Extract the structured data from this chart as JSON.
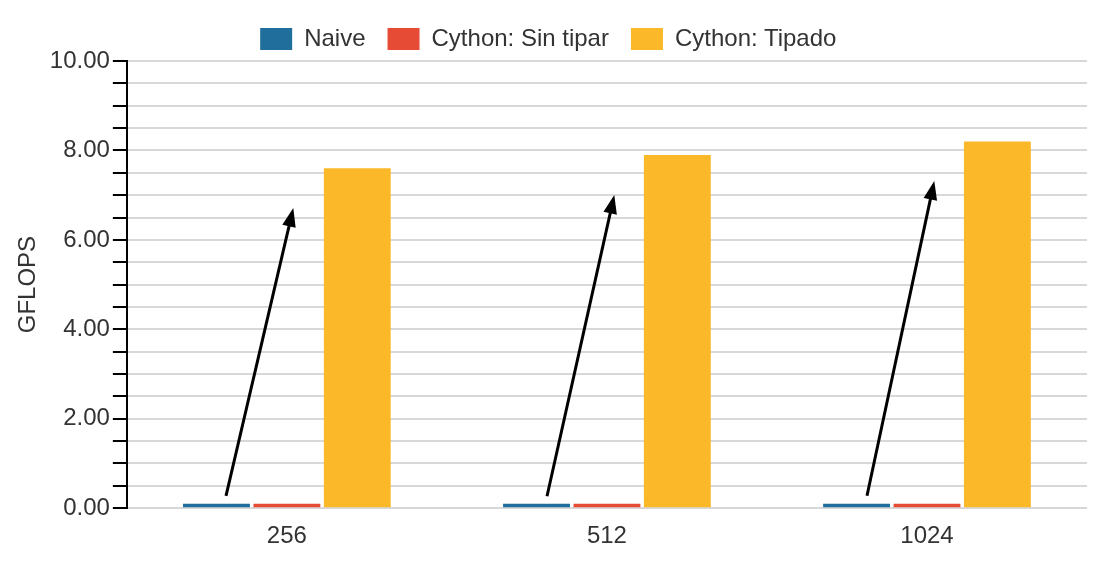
{
  "chart_data": {
    "type": "bar",
    "ylabel": "GFLOPS",
    "categories": [
      "256",
      "512",
      "1024"
    ],
    "series": [
      {
        "name": "Naive",
        "color": "#1f6e9c",
        "values": [
          0.1,
          0.1,
          0.1
        ]
      },
      {
        "name": "Cython: Sin tipar",
        "color": "#e64b35",
        "values": [
          0.1,
          0.1,
          0.1
        ]
      },
      {
        "name": "Cython: Tipado",
        "color": "#fbb829",
        "values": [
          7.6,
          7.9,
          8.2
        ]
      }
    ],
    "ylim": [
      0,
      10
    ],
    "yticks": [
      {
        "value": 0,
        "label": "0.00"
      },
      {
        "value": 0.5,
        "label": null
      },
      {
        "value": 1,
        "label": null
      },
      {
        "value": 1.5,
        "label": null
      },
      {
        "value": 2,
        "label": "2.00"
      },
      {
        "value": 2.5,
        "label": null
      },
      {
        "value": 3,
        "label": null
      },
      {
        "value": 3.5,
        "label": null
      },
      {
        "value": 4,
        "label": "4.00"
      },
      {
        "value": 4.5,
        "label": null
      },
      {
        "value": 5,
        "label": null
      },
      {
        "value": 5.5,
        "label": null
      },
      {
        "value": 6,
        "label": "6.00"
      },
      {
        "value": 6.5,
        "label": null
      },
      {
        "value": 7,
        "label": null
      },
      {
        "value": 7.5,
        "label": null
      },
      {
        "value": 8,
        "label": "8.00"
      },
      {
        "value": 8.5,
        "label": null
      },
      {
        "value": 9,
        "label": null
      },
      {
        "value": 9.5,
        "label": null
      },
      {
        "value": 10,
        "label": "10.00"
      }
    ],
    "grid": "y",
    "legend": "top"
  }
}
